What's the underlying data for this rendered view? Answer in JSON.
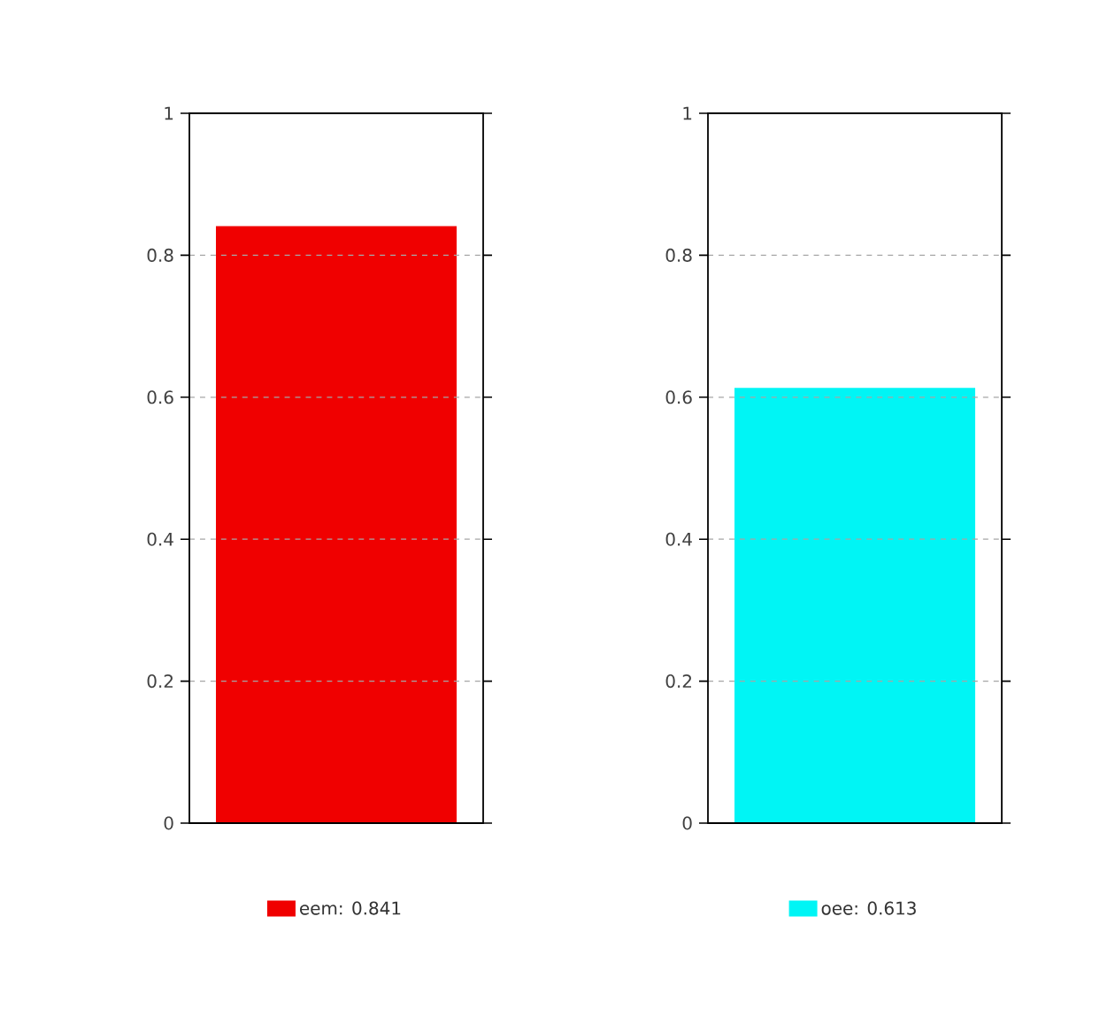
{
  "chart_data": [
    {
      "type": "bar",
      "categories": [
        null
      ],
      "series": [
        {
          "name": "eem: 0.841",
          "color": "#f00000",
          "values": [
            0.841
          ]
        }
      ],
      "ylim": [
        0,
        1
      ],
      "yticks": [
        0,
        0.2,
        0.4,
        0.6,
        0.8,
        1
      ],
      "grid": "y",
      "legend": "bottom"
    },
    {
      "type": "bar",
      "categories": [
        null
      ],
      "series": [
        {
          "name": "oee: 0.613",
          "color": "#00f5f5",
          "values": [
            0.613
          ]
        }
      ],
      "ylim": [
        0,
        1
      ],
      "yticks": [
        0,
        0.2,
        0.4,
        0.6,
        0.8,
        1
      ],
      "grid": "y",
      "legend": "bottom"
    }
  ]
}
